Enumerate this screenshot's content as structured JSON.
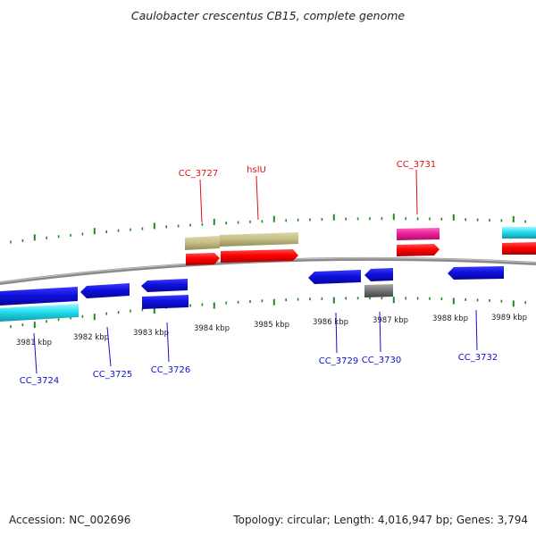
{
  "map": {
    "title": "Caulobacter crescentus CB15, complete genome",
    "accession": "Accession: NC_002696",
    "summary": "Topology: circular; Length: 4,016,947 bp; Genes: 3,794"
  },
  "scale_labels": [
    "3981 kbp",
    "3982 kbp",
    "3983 kbp",
    "3984 kbp",
    "3985 kbp",
    "3986 kbp",
    "3987 kbp",
    "3988 kbp",
    "3989 kbp"
  ],
  "gene_labels": {
    "above": [
      "CC_3727",
      "hslU",
      "CC_3731"
    ],
    "below": [
      "CC_3724",
      "CC_3725",
      "CC_3726",
      "CC_3729",
      "CC_3730",
      "CC_3732"
    ]
  },
  "colors": {
    "forward_cds": "#ff0000",
    "reverse_cds": "#1010dd",
    "cyan_feature": "#22ccdd",
    "khaki_feature": "#c8c088",
    "pink_feature": "#ee2299",
    "gray_feature": "#777777",
    "tick": "#228822",
    "backbone": "#8a8a8a",
    "label_forward": "#e01010",
    "label_reverse": "#1010cc"
  }
}
